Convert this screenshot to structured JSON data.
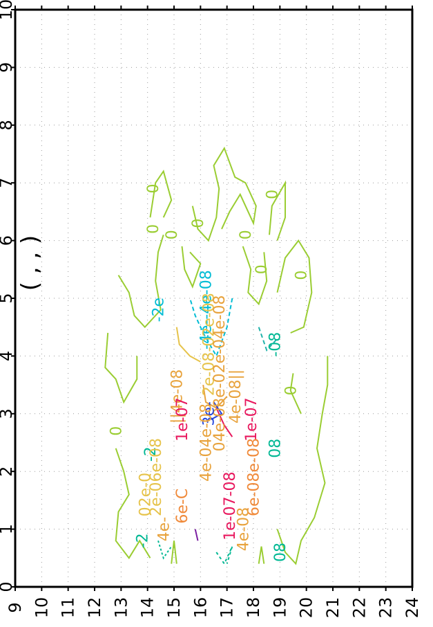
{
  "chart_data": {
    "type": "contour",
    "title_visible_fragment": "( , , )",
    "x_axis": {
      "range": [
        0,
        10
      ],
      "ticks": [
        "0",
        "1",
        "2",
        "3",
        "4",
        "5",
        "6",
        "7",
        "8",
        "9",
        "10"
      ]
    },
    "y_axis": {
      "range": [
        9,
        24
      ],
      "ticks": [
        "9",
        "10",
        "11",
        "12",
        "13",
        "14",
        "15",
        "16",
        "17",
        "18",
        "19",
        "20",
        "21",
        "22",
        "23",
        "24"
      ]
    },
    "grid": "dotted",
    "colors": {
      "zero": "#9acd32",
      "neg2e8": "#20b2aa",
      "neg4e8": "#00bcd4",
      "pos2e8": "#e6c34a",
      "pos4e8": "#e8a33d",
      "pos6e8": "#f08a3a",
      "pos8e8": "#f06a35",
      "pos1e7": "#e8175d",
      "pos3e7": "#2244dd",
      "violet": "#7b1fa2",
      "teal": "#00b894"
    },
    "contour_labels": [
      {
        "text": "0",
        "x": 6.9,
        "y": 14.4,
        "color": "zero"
      },
      {
        "text": "0",
        "x": 6.3,
        "y": 16.1,
        "color": "zero"
      },
      {
        "text": "0",
        "x": 6.8,
        "y": 18.9,
        "color": "zero"
      },
      {
        "text": "0",
        "x": 6.1,
        "y": 17.9,
        "color": "zero"
      },
      {
        "text": "0",
        "x": 6.2,
        "y": 14.4,
        "color": "zero"
      },
      {
        "text": "0",
        "x": 6.1,
        "y": 15.1,
        "color": "zero"
      },
      {
        "text": "0",
        "x": 5.5,
        "y": 18.5,
        "color": "zero"
      },
      {
        "text": "0",
        "x": 5.4,
        "y": 20.0,
        "color": "zero"
      },
      {
        "text": "0",
        "x": 3.4,
        "y": 19.6,
        "color": "zero"
      },
      {
        "text": "0",
        "x": 2.7,
        "y": 13.0,
        "color": "zero"
      },
      {
        "text": "-2e",
        "x": 4.8,
        "y": 14.6,
        "color": "neg4e8"
      },
      {
        "text": "-4e--4e-08",
        "x": 4.8,
        "y": 16.4,
        "color": "neg4e8"
      },
      {
        "text": "-08",
        "x": 4.2,
        "y": 19.0,
        "color": "teal"
      },
      {
        "text": "2e-08-02e-08",
        "x": 4.2,
        "y": 16.5,
        "color": "pos2e8"
      },
      {
        "text": "04e-08e-02e-04e-08",
        "x": 3.7,
        "y": 16.9,
        "color": "pos4e8"
      },
      {
        "text": "||4e-08",
        "x": 3.3,
        "y": 15.3,
        "color": "pos4e8"
      },
      {
        "text": "4e-08||",
        "x": 3.3,
        "y": 17.5,
        "color": "pos4e8"
      },
      {
        "text": "1e-07",
        "x": 2.9,
        "y": 15.5,
        "color": "pos1e7"
      },
      {
        "text": "1e-07",
        "x": 2.9,
        "y": 18.1,
        "color": "pos1e7"
      },
      {
        "text": "3e-",
        "x": 3.0,
        "y": 16.5,
        "color": "pos3e7"
      },
      {
        "text": "4e-04e-08",
        "x": 2.5,
        "y": 16.4,
        "color": "pos4e8"
      },
      {
        "text": "-2",
        "x": 2.3,
        "y": 14.3,
        "color": "teal"
      },
      {
        "text": "08",
        "x": 2.4,
        "y": 19.0,
        "color": "teal"
      },
      {
        "text": "2e-06e-08",
        "x": 1.9,
        "y": 14.5,
        "color": "pos2e8"
      },
      {
        "text": "6e-08e-08",
        "x": 1.9,
        "y": 18.2,
        "color": "pos6e8"
      },
      {
        "text": "02e-0",
        "x": 1.6,
        "y": 14.1,
        "color": "pos2e8"
      },
      {
        "text": "6e-C",
        "x": 1.4,
        "y": 15.5,
        "color": "pos6e8"
      },
      {
        "text": "1e-07-08",
        "x": 1.4,
        "y": 17.3,
        "color": "pos1e7"
      },
      {
        "text": "-2",
        "x": 0.8,
        "y": 14.0,
        "color": "teal"
      },
      {
        "text": "4e-",
        "x": 1.0,
        "y": 14.8,
        "color": "pos4e8"
      },
      {
        "text": "4e-08",
        "x": 1.0,
        "y": 17.8,
        "color": "pos4e8"
      },
      {
        "text": "08",
        "x": 0.6,
        "y": 19.2,
        "color": "teal"
      }
    ]
  }
}
